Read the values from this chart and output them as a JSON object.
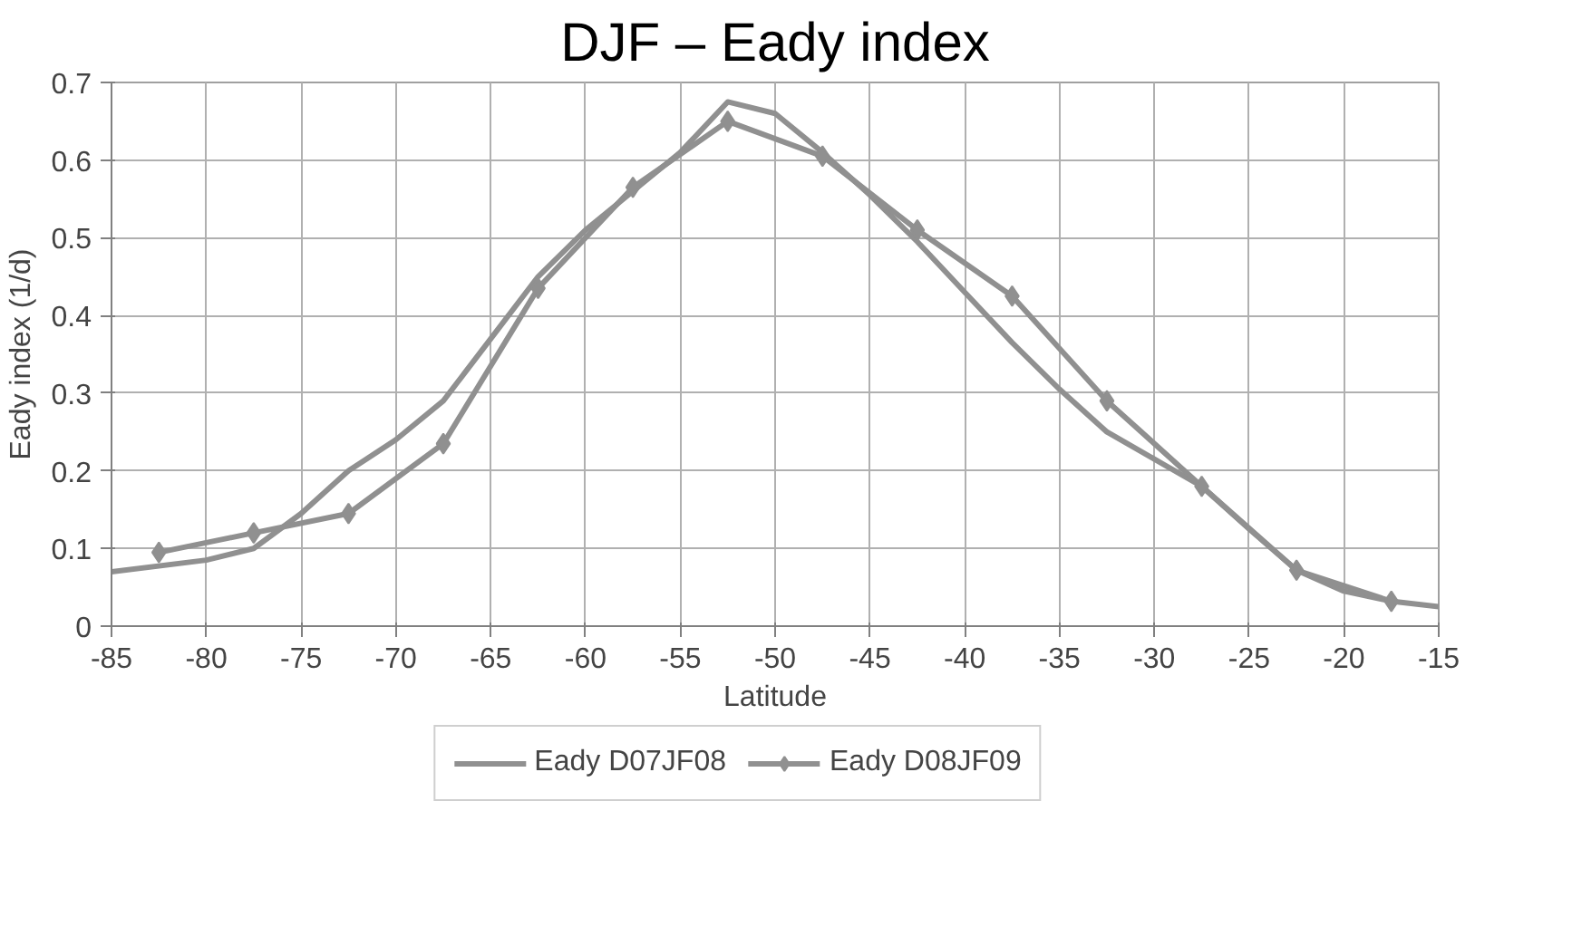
{
  "chart_data": {
    "type": "line",
    "title": "DJF – Eady index",
    "xlabel": "Latitude",
    "ylabel": "Eady index (1/d)",
    "xlim": [
      -85,
      -15
    ],
    "xticks": [
      -85,
      -80,
      -75,
      -70,
      -65,
      -60,
      -55,
      -50,
      -45,
      -40,
      -35,
      -30,
      -25,
      -20,
      -15
    ],
    "ylim": [
      0,
      0.7
    ],
    "yticks": [
      0,
      0.1,
      0.2,
      0.3,
      0.4,
      0.5,
      0.6,
      0.7
    ],
    "grid": true,
    "legend": "bottom",
    "line_style": "solid",
    "series": [
      {
        "name": "Eady D07JF08",
        "color": "#909090",
        "marker": "none",
        "x": [
          -85,
          -80,
          -77.5,
          -75,
          -72.5,
          -70,
          -67.5,
          -65,
          -62.5,
          -60,
          -57.5,
          -55,
          -52.5,
          -50,
          -47.5,
          -45,
          -42.5,
          -40,
          -37.5,
          -35,
          -32.5,
          -30,
          -27.5,
          -25,
          -22.5,
          -20,
          -17.5,
          -15
        ],
        "values": [
          0.07,
          0.085,
          0.1,
          0.145,
          0.2,
          0.24,
          0.29,
          0.37,
          0.45,
          0.51,
          0.56,
          0.61,
          0.675,
          0.66,
          0.61,
          0.555,
          0.495,
          0.43,
          0.365,
          0.305,
          0.25,
          0.215,
          0.18,
          0.125,
          0.072,
          0.045,
          0.032,
          0.025
        ]
      },
      {
        "name": "Eady D08JF09",
        "color": "#909090",
        "marker": "diamond",
        "x": [
          -82.5,
          -77.5,
          -72.5,
          -67.5,
          -62.5,
          -57.5,
          -52.5,
          -47.5,
          -42.5,
          -37.5,
          -32.5,
          -27.5,
          -22.5,
          -17.5
        ],
        "values": [
          0.095,
          0.12,
          0.145,
          0.235,
          0.435,
          0.565,
          0.65,
          0.605,
          0.51,
          0.425,
          0.29,
          0.18,
          0.072,
          0.032
        ]
      }
    ]
  }
}
